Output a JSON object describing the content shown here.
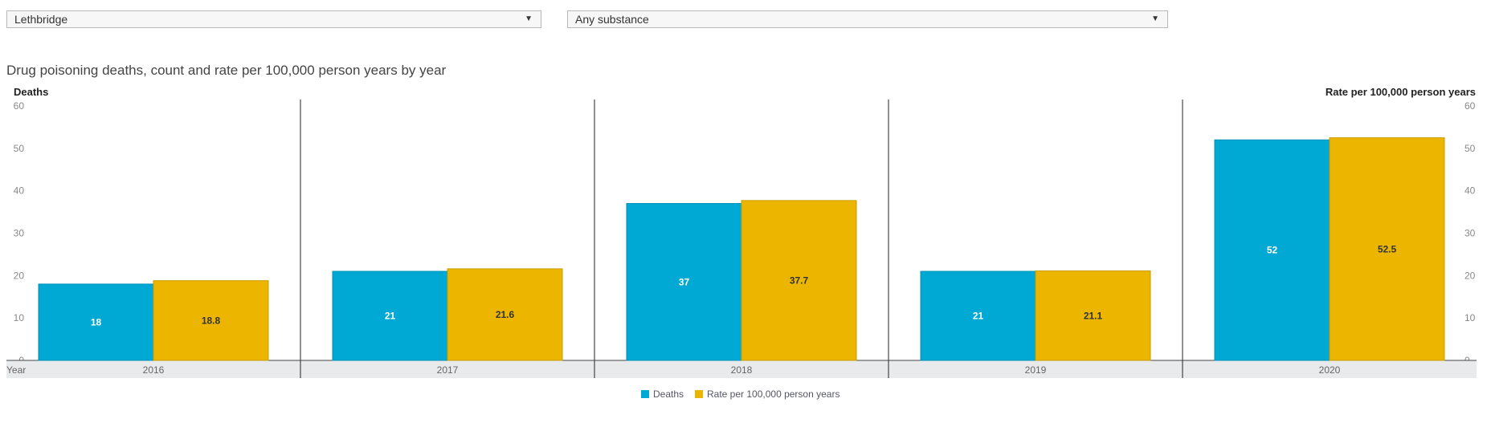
{
  "filters": {
    "region": {
      "value": "Lethbridge"
    },
    "substance": {
      "value": "Any substance"
    }
  },
  "chart_data": {
    "type": "bar",
    "title": "Drug poisoning deaths, count and rate per 100,000 person years by year",
    "xlabel": "Year",
    "ylabel": "Deaths",
    "ylabel_right": "Rate per 100,000 person years",
    "ylim": [
      0,
      60
    ],
    "yticks": [
      0,
      10,
      20,
      30,
      40,
      50,
      60
    ],
    "categories": [
      "2016",
      "2017",
      "2018",
      "2019",
      "2020"
    ],
    "series": [
      {
        "name": "Deaths",
        "axis": "left",
        "color": "#00a9d4",
        "label_color": "#ffffff",
        "values": [
          18,
          21,
          37,
          21,
          52
        ]
      },
      {
        "name": "Rate per 100,000 person years",
        "axis": "right",
        "color": "#ebb500",
        "label_color": "#333333",
        "values": [
          18.8,
          21.6,
          37.7,
          21.1,
          52.5
        ]
      }
    ],
    "legend_position": "bottom-center",
    "grid": false
  }
}
